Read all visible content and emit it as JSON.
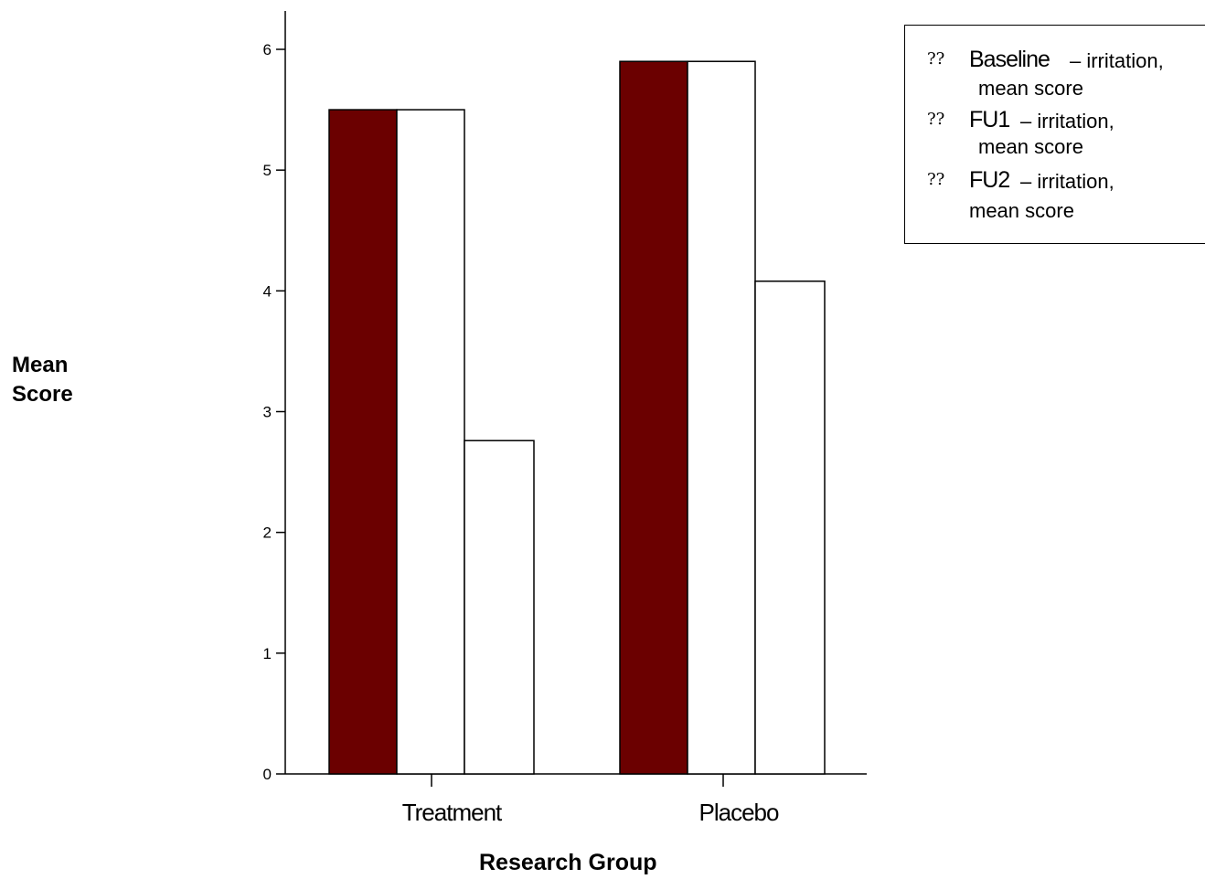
{
  "chart_data": {
    "type": "bar",
    "categories": [
      "Treatment",
      "Placebo"
    ],
    "series": [
      {
        "name": "Baseline",
        "values": [
          5.5,
          5.9
        ],
        "color": "#6b0000"
      },
      {
        "name": "FU1",
        "values": [
          5.5,
          5.9
        ],
        "color": "#ffffff"
      },
      {
        "name": "FU2",
        "values": [
          2.76,
          4.08
        ],
        "color": "#ffffff"
      }
    ],
    "xlabel": "Research Group",
    "ylabel_line1": "Mean",
    "ylabel_line2": "Score",
    "ylim": [
      0,
      6.3
    ],
    "yticks": [
      0,
      1,
      2,
      3,
      4,
      5,
      6
    ],
    "grid": false,
    "legend_position": "top-right"
  },
  "legend": {
    "marker": "??",
    "items": [
      {
        "name": "Baseline",
        "desc": "– irritation,",
        "desc2": "mean score"
      },
      {
        "name": "FU1",
        "desc": "– irritation,",
        "desc2": "mean score"
      },
      {
        "name": "FU2",
        "desc": "– irritation,",
        "desc2": "mean score"
      }
    ]
  }
}
